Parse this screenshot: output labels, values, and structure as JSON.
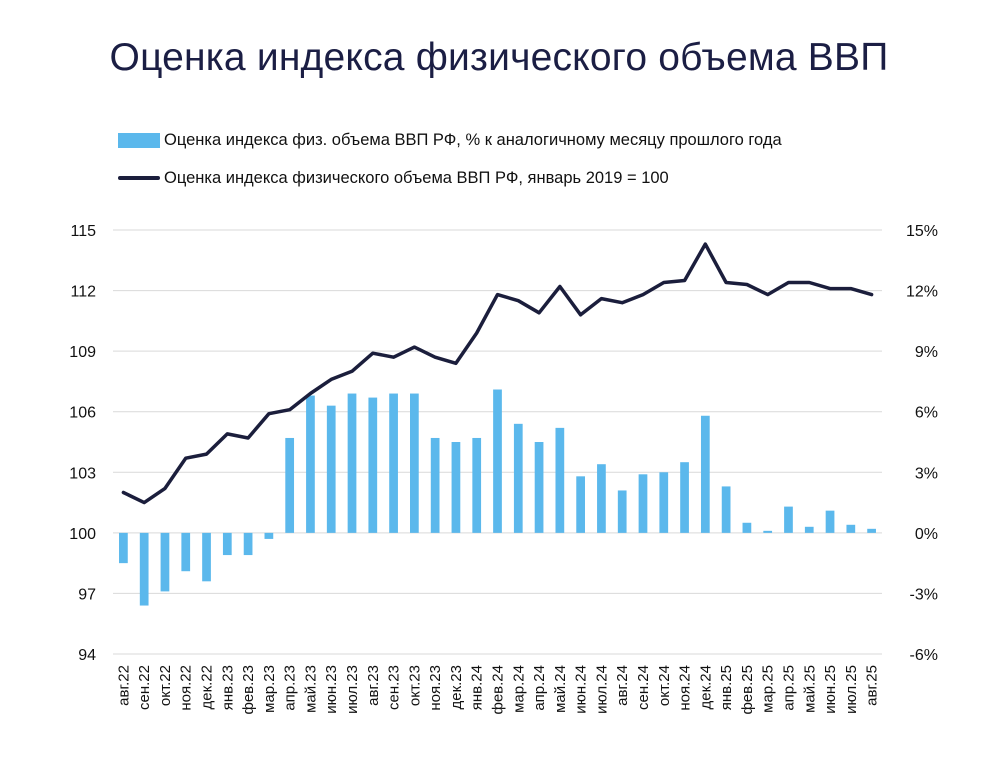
{
  "chart_data": {
    "type": "bar+line",
    "title": "Оценка индекса физического объема ВВП",
    "categories": [
      "авг.22",
      "сен.22",
      "окт.22",
      "ноя.22",
      "дек.22",
      "янв.23",
      "фев.23",
      "мар.23",
      "апр.23",
      "май.23",
      "июн.23",
      "июл.23",
      "авг.23",
      "сен.23",
      "окт.23",
      "ноя.23",
      "дек.23",
      "янв.24",
      "фев.24",
      "мар.24",
      "апр.24",
      "май.24",
      "июн.24",
      "июл.24",
      "авг.24",
      "сен.24",
      "окт.24",
      "ноя.24",
      "дек.24",
      "янв.25",
      "фев.25",
      "мар.25",
      "апр.25",
      "май.25",
      "июн.25",
      "июл.25",
      "авг.25"
    ],
    "series": [
      {
        "name": "Оценка индекса физ. объема ВВП РФ, % к аналогичному месяцу прошлого года",
        "type": "bar",
        "axis": "right",
        "color": "#5bb8ec",
        "values": [
          -1.5,
          -3.6,
          -2.9,
          -1.9,
          -2.4,
          -1.1,
          -1.1,
          -0.3,
          4.7,
          6.8,
          6.3,
          6.9,
          6.7,
          6.9,
          6.9,
          4.7,
          4.5,
          4.7,
          7.1,
          5.4,
          4.5,
          5.2,
          2.8,
          3.4,
          2.1,
          2.9,
          3.0,
          3.5,
          5.8,
          2.3,
          0.5,
          0.1,
          1.3,
          0.3,
          1.1,
          0.4,
          0.2
        ]
      },
      {
        "name": "Оценка индекса физического объема ВВП РФ, январь 2019 = 100",
        "type": "line",
        "axis": "left",
        "color": "#1b1e3c",
        "values": [
          102.0,
          101.5,
          102.2,
          103.7,
          103.9,
          104.9,
          104.7,
          105.9,
          106.1,
          106.9,
          107.6,
          108.0,
          108.9,
          108.7,
          109.2,
          108.7,
          108.4,
          109.9,
          111.8,
          111.5,
          110.9,
          112.2,
          110.8,
          111.6,
          111.4,
          111.8,
          112.4,
          112.5,
          114.3,
          112.4,
          112.3,
          111.8,
          112.4,
          112.4,
          112.1,
          112.1,
          111.8
        ]
      }
    ],
    "yleft": {
      "ticks": [
        "115",
        "112",
        "109",
        "106",
        "103",
        "100",
        "97",
        "94"
      ],
      "ylim": [
        94,
        115
      ]
    },
    "yright": {
      "ticks": [
        "15%",
        "12%",
        "9%",
        "6%",
        "3%",
        "0%",
        "-3%",
        "-6%"
      ],
      "ylim": [
        -6,
        15
      ]
    },
    "grid": true,
    "legend_position": "top-left"
  }
}
